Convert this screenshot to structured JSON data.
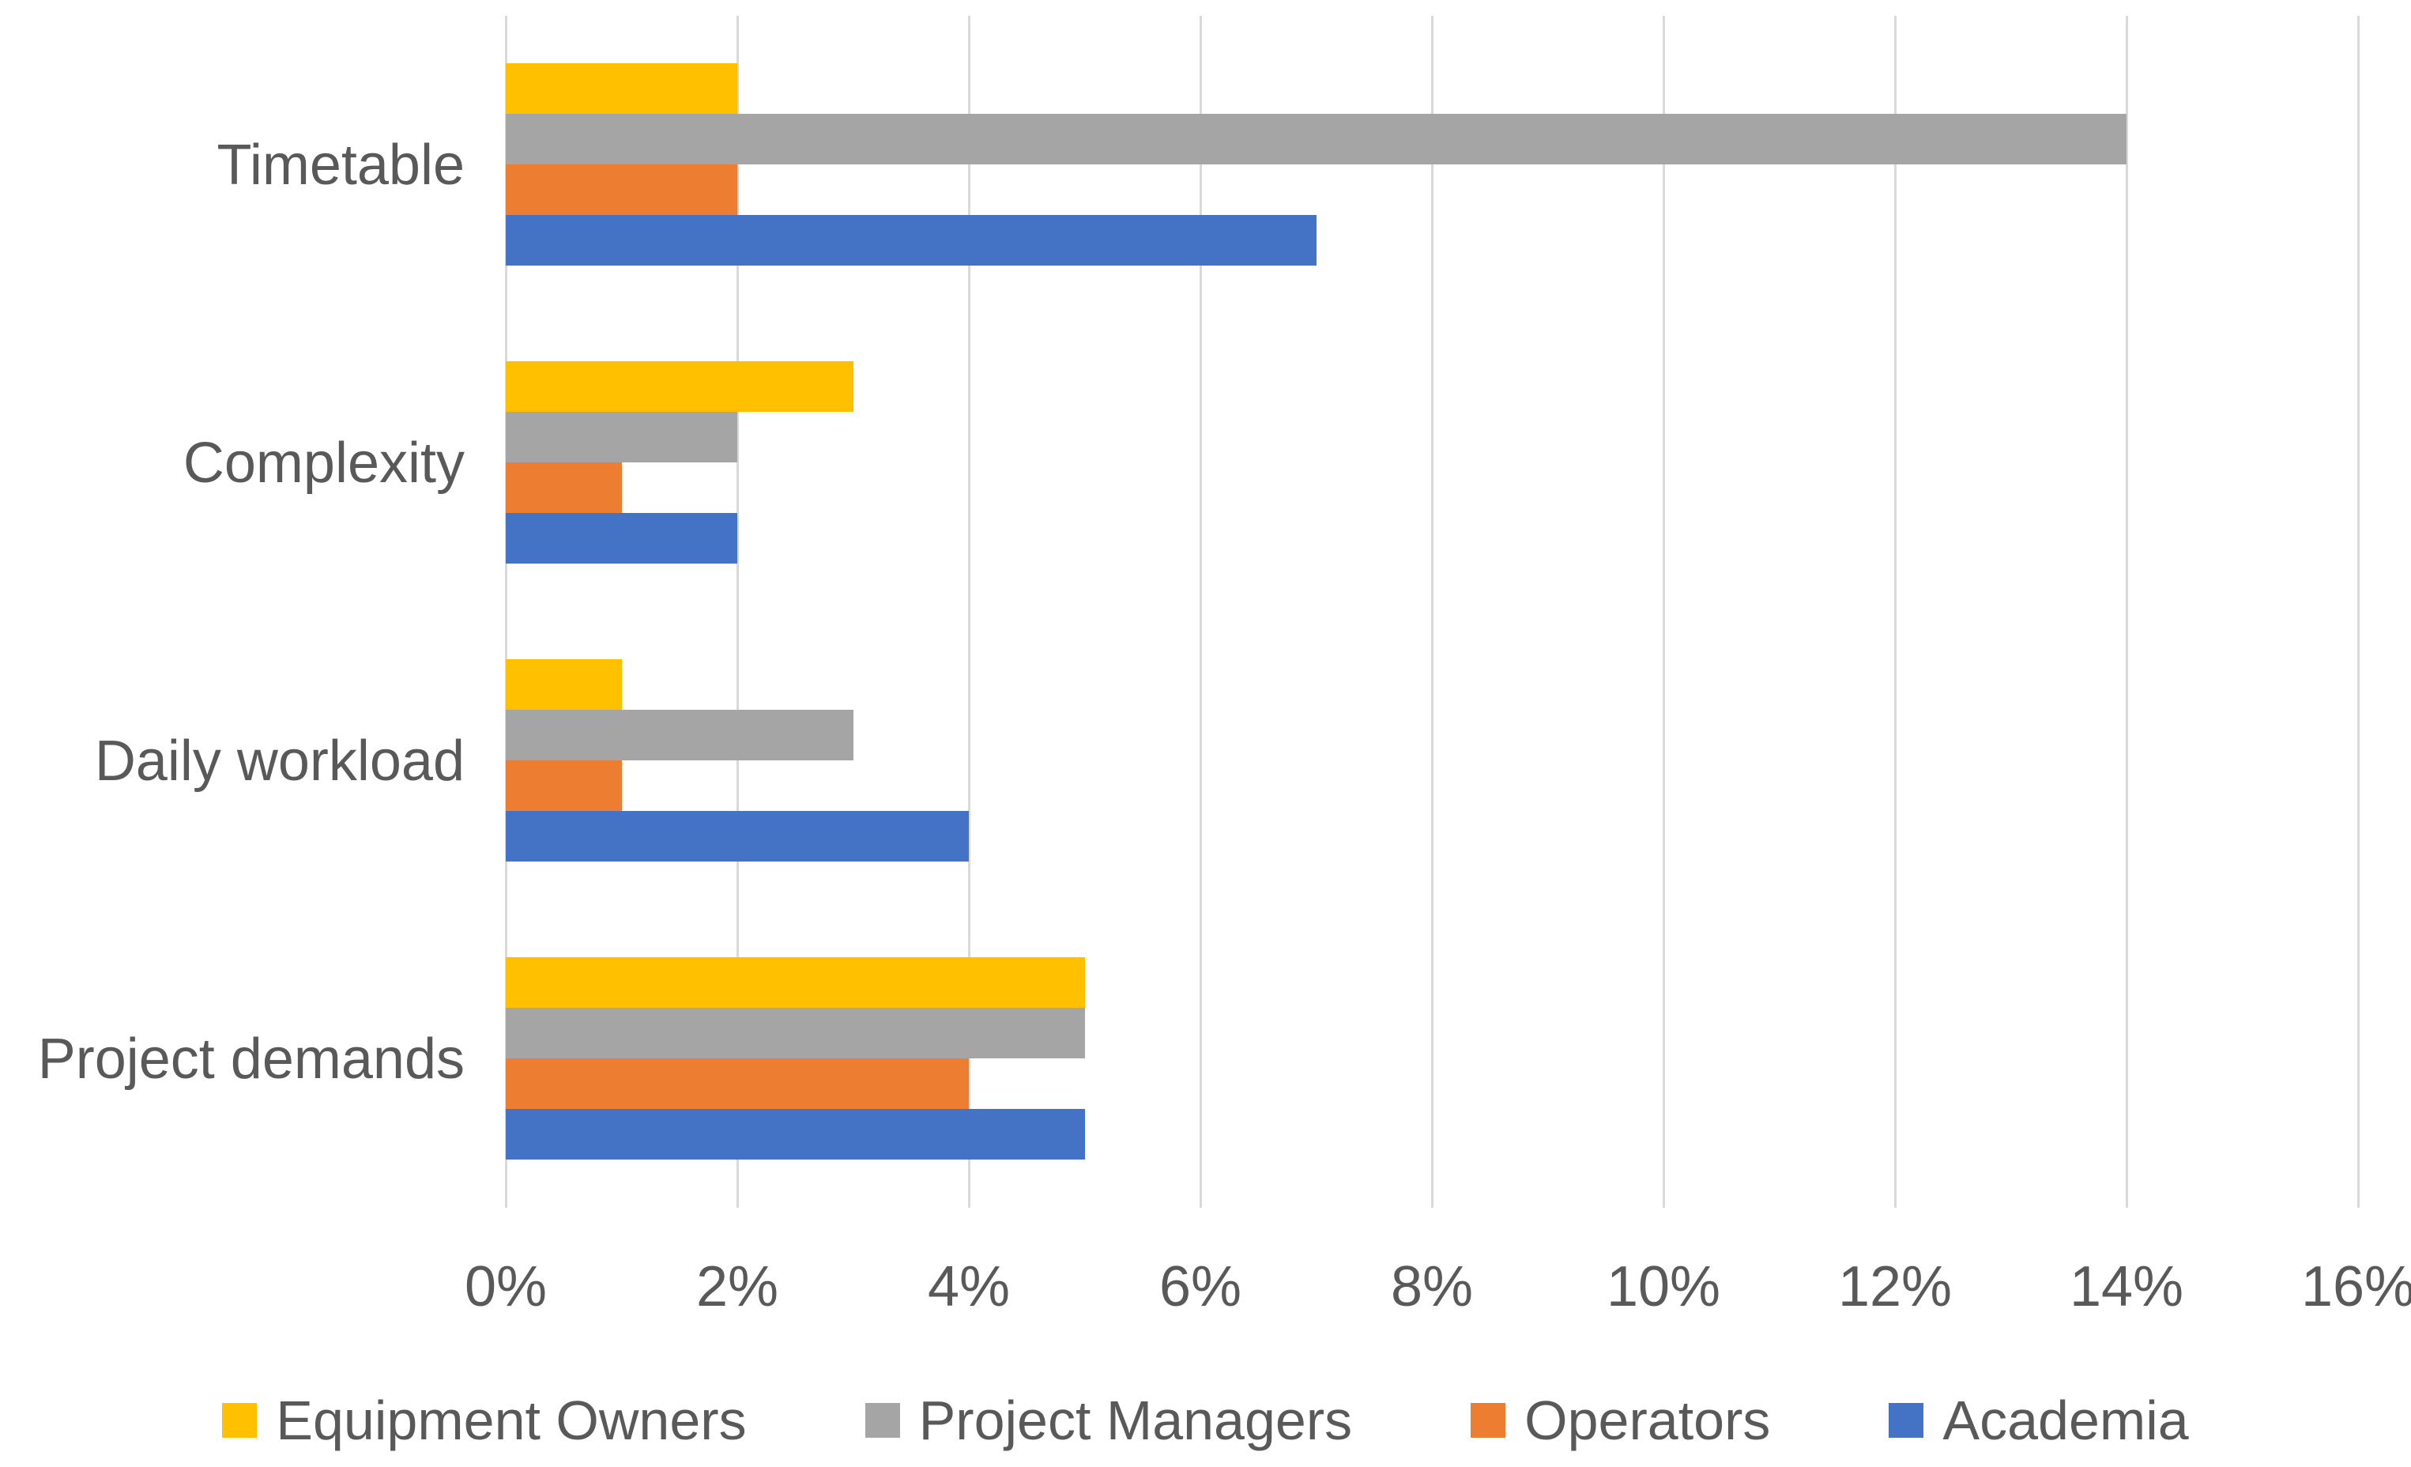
{
  "chart_data": {
    "type": "bar",
    "orientation": "horizontal",
    "title": "",
    "xlabel": "",
    "ylabel": "",
    "categories": [
      "Timetable",
      "Complexity",
      "Daily workload",
      "Project demands"
    ],
    "series": [
      {
        "name": "Equipment Owners",
        "color": "#FFC000",
        "values": [
          2,
          3,
          1,
          5
        ]
      },
      {
        "name": "Project Managers",
        "color": "#A5A5A5",
        "values": [
          14,
          2,
          3,
          5
        ]
      },
      {
        "name": "Operators",
        "color": "#ED7D31",
        "values": [
          2,
          1,
          1,
          4
        ]
      },
      {
        "name": "Academia",
        "color": "#4472C4",
        "values": [
          7,
          2,
          4,
          5
        ]
      }
    ],
    "x_axis": {
      "min": 0,
      "max": 16,
      "tick_step": 2,
      "tick_labels": [
        "0%",
        "2%",
        "4%",
        "6%",
        "8%",
        "10%",
        "12%",
        "14%",
        "16%"
      ],
      "unit": "%"
    },
    "grid": true,
    "gridline_color": "#D9D9D9",
    "text_color": "#595959",
    "background_color": "#FFFFFF",
    "legend_position": "bottom",
    "legend_labels": [
      "Equipment Owners",
      "Project Managers",
      "Operators",
      "Academia"
    ]
  }
}
